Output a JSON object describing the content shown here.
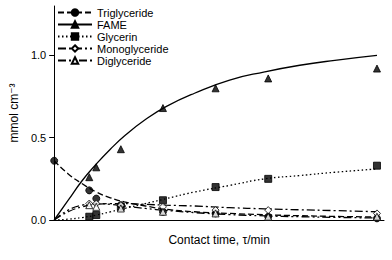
{
  "chart_data": {
    "type": "scatter",
    "x_label": "Contact time, τ/min",
    "y_label": "mmol cm⁻³",
    "xlim": [
      0,
      47
    ],
    "ylim": [
      0,
      1.3
    ],
    "yticks": [
      {
        "value": 0,
        "label": "0.0"
      },
      {
        "value": 0.5,
        "label": "0.5"
      },
      {
        "value": 1.0,
        "label": "1.0"
      }
    ],
    "tick_labels": "y",
    "grid": false,
    "legend": "upper left",
    "series": [
      {
        "name": "Triglyceride",
        "color": "#000000",
        "marker": "circle",
        "line_style": "dashed",
        "x": [
          0,
          5,
          6,
          9.5,
          15.5,
          23,
          30.5,
          46
        ],
        "values": [
          0.36,
          0.18,
          0.13,
          0.09,
          0.05,
          0.04,
          0.02,
          0.01
        ],
        "fit_x": [
          0,
          2,
          4,
          6,
          8,
          10,
          13,
          16,
          20,
          25,
          30,
          35,
          40,
          46
        ],
        "fit_values": [
          0.36,
          0.28,
          0.22,
          0.17,
          0.135,
          0.11,
          0.085,
          0.065,
          0.05,
          0.04,
          0.032,
          0.026,
          0.022,
          0.018
        ]
      },
      {
        "name": "FAME",
        "color": "#000000",
        "marker": "triangle",
        "line_style": "solid",
        "x": [
          5,
          6,
          9.5,
          15.5,
          23,
          30.5,
          46
        ],
        "values": [
          0.26,
          0.32,
          0.43,
          0.68,
          0.8,
          0.86,
          0.92
        ],
        "fit_x": [
          0,
          2,
          4,
          6,
          8,
          10,
          13,
          16,
          20,
          25,
          30,
          35,
          40,
          46
        ],
        "fit_values": [
          0,
          0.12,
          0.24,
          0.34,
          0.43,
          0.51,
          0.61,
          0.69,
          0.77,
          0.85,
          0.9,
          0.94,
          0.97,
          1.0
        ]
      },
      {
        "name": "Glycerin",
        "color": "#000000",
        "marker": "square",
        "line_style": "dotted",
        "x": [
          5,
          6,
          9.5,
          15.5,
          23,
          30.5,
          46
        ],
        "values": [
          0.02,
          0.03,
          0.08,
          0.12,
          0.2,
          0.25,
          0.33
        ],
        "fit_x": [
          0,
          2,
          4,
          6,
          8,
          10,
          13,
          16,
          20,
          25,
          30,
          35,
          40,
          46
        ],
        "fit_values": [
          0,
          0.005,
          0.015,
          0.03,
          0.05,
          0.07,
          0.1,
          0.13,
          0.17,
          0.21,
          0.25,
          0.27,
          0.29,
          0.31
        ]
      },
      {
        "name": "Monoglyceride",
        "color": "#000000",
        "marker": "open_diamond",
        "line_style": "dashdot",
        "x": [
          5,
          6,
          9.5,
          15.5,
          23,
          30.5,
          46
        ],
        "values": [
          0.1,
          0.1,
          0.09,
          0.08,
          0.06,
          0.06,
          0.04
        ],
        "fit_x": [
          0,
          2,
          4,
          6,
          8,
          10,
          13,
          16,
          20,
          25,
          30,
          35,
          40,
          46
        ],
        "fit_values": [
          0,
          0.05,
          0.08,
          0.095,
          0.1,
          0.1,
          0.095,
          0.09,
          0.085,
          0.075,
          0.068,
          0.062,
          0.057,
          0.05
        ]
      },
      {
        "name": "Diglyceride",
        "color": "#000000",
        "marker": "open_triangle",
        "line_style": "dashdotdot",
        "x": [
          5,
          6,
          9.5,
          15.5,
          23,
          30.5,
          46
        ],
        "values": [
          0.09,
          0.08,
          0.07,
          0.05,
          0.04,
          0.02,
          0.02
        ],
        "fit_x": [
          0,
          2,
          4,
          6,
          8,
          10,
          13,
          16,
          20,
          25,
          30,
          35,
          40,
          46
        ],
        "fit_values": [
          0,
          0.06,
          0.09,
          0.1,
          0.095,
          0.085,
          0.07,
          0.058,
          0.045,
          0.033,
          0.025,
          0.02,
          0.016,
          0.012
        ]
      }
    ]
  }
}
